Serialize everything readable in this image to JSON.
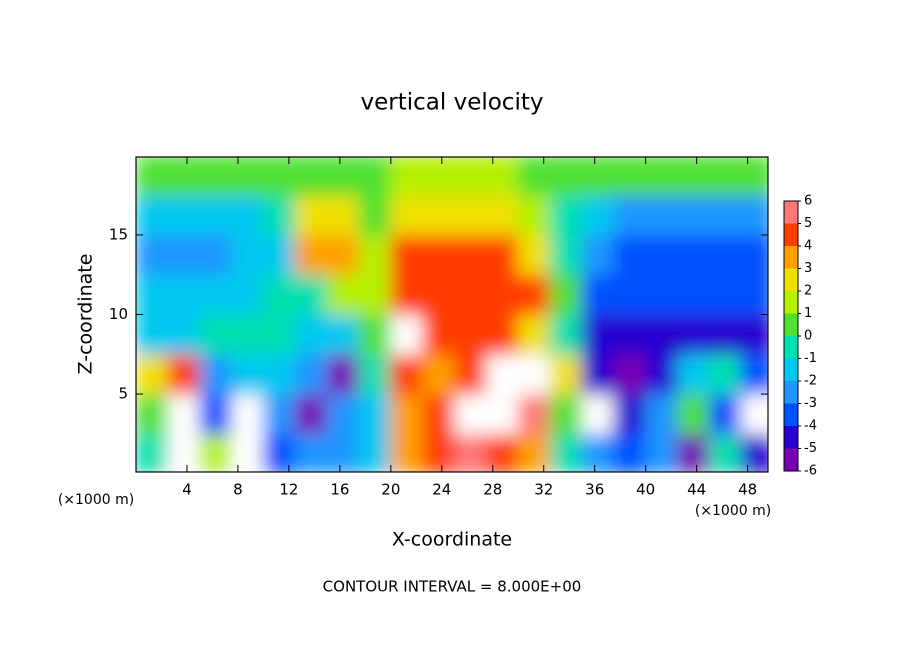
{
  "chart_data": {
    "type": "heatmap",
    "title": "vertical velocity",
    "x_label": "X-coordinate",
    "y_label": "Z-coordinate",
    "x_unit": "(×1000 m)",
    "y_unit": "(×1000 m)",
    "note": "CONTOUR INTERVAL = 8.000E+00",
    "xlim": [
      0,
      49.6
    ],
    "ylim": [
      0.1,
      19.9
    ],
    "xticks": [
      4,
      8,
      12,
      16,
      20,
      24,
      28,
      32,
      36,
      40,
      44,
      48
    ],
    "yticks": [
      5,
      10,
      15
    ],
    "x": [
      1.25,
      3.75,
      6.25,
      8.75,
      11.25,
      13.75,
      16.25,
      18.75,
      21.25,
      23.75,
      26.25,
      28.75,
      31.25,
      33.75,
      36.25,
      38.75,
      41.25,
      43.75,
      46.25,
      48.75
    ],
    "y": [
      1.25,
      3.75,
      6.25,
      8.75,
      11.25,
      13.75,
      16.25,
      18.75
    ],
    "z": [
      [
        0,
        8,
        2,
        -7,
        -3,
        -2,
        -2,
        -1,
        4,
        5,
        6,
        5,
        4,
        0,
        -2,
        -3,
        -2,
        -5,
        0,
        -4
      ],
      [
        1,
        8,
        -3,
        -8,
        -2,
        -5,
        -2,
        -1,
        4,
        5,
        8,
        8,
        6,
        1,
        -7,
        -4,
        -2,
        1,
        -3,
        -7
      ],
      [
        3,
        5,
        -2,
        -1,
        -1,
        -2,
        -5,
        0,
        5,
        4,
        5,
        8,
        7,
        3,
        -4,
        -5,
        -4,
        -1,
        0,
        -3
      ],
      [
        -1,
        -1,
        -0.5,
        -0.5,
        -0.5,
        -1,
        -1,
        1,
        7,
        5,
        5,
        5,
        3,
        0,
        -4,
        -4,
        -4,
        -4,
        -4,
        -4
      ],
      [
        -1,
        -1.5,
        -1,
        -1,
        0,
        0,
        2,
        2,
        5,
        5,
        5,
        5,
        5,
        0.5,
        -3,
        -3.5,
        -3.5,
        -3,
        -3,
        -3.5
      ],
      [
        -2,
        -2,
        -2,
        -1.5,
        -1.5,
        3.5,
        3.5,
        2,
        4.5,
        4.5,
        4.5,
        4.5,
        3,
        0,
        -2,
        -3,
        -3,
        -3,
        -3,
        -3
      ],
      [
        -1.5,
        -1.5,
        -1.5,
        -1,
        0,
        3,
        3,
        1,
        2.5,
        2.5,
        2.5,
        2.5,
        2,
        0,
        -1,
        -2,
        -2,
        -2,
        -2,
        -2
      ],
      [
        0.5,
        0.5,
        0.5,
        0.5,
        0.5,
        0.5,
        0.5,
        0.5,
        1.5,
        1.5,
        1.5,
        1.5,
        1,
        0.5,
        0.5,
        0.5,
        0.5,
        0.5,
        0.5,
        0.5
      ]
    ],
    "levels": [
      -6,
      -5,
      -4,
      -3,
      -2,
      -1,
      0,
      1,
      2,
      3,
      4,
      5,
      6
    ],
    "colors": [
      "#7800b4",
      "#2800d0",
      "#0050ff",
      "#1e96ff",
      "#00c8f0",
      "#00e0b0",
      "#50e030",
      "#b4f000",
      "#f0e000",
      "#ffa000",
      "#ff3c00",
      "#ff7878"
    ],
    "out_of_range_color": "#ffffff"
  }
}
